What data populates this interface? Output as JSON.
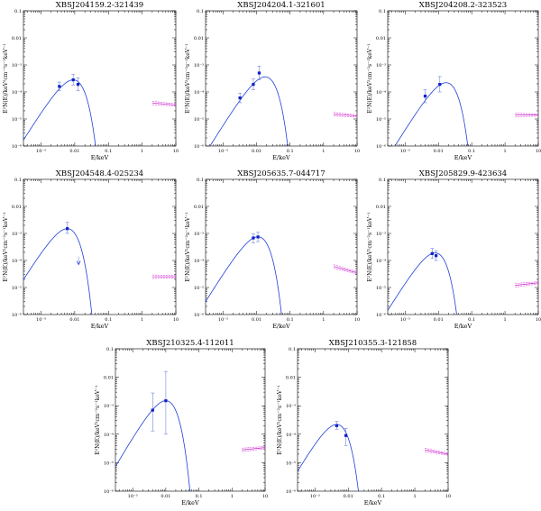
{
  "figure": {
    "x_axis_label": "E/keV",
    "y_axis_label": "E²N(E)/keV²cm⁻²s⁻¹keV⁻¹",
    "colors": {
      "model": "#1f3fd6",
      "uv_points": "#1020c8",
      "uv_errors": "#6f86d8",
      "xray": "#e040e0"
    }
  },
  "chart_data": [
    {
      "type": "line",
      "title": "XBSJ204159.2-321439",
      "xlabel": "E/keV",
      "ylabel": "E²N(E)/keV²cm⁻²s⁻¹keV⁻¹",
      "xscale": "log",
      "yscale": "log",
      "xlim": [
        0.0003,
        10
      ],
      "ylim": [
        1e-06,
        0.1
      ],
      "x_ticks": [
        "10⁻³",
        "0.01",
        "0.1",
        "1",
        "10"
      ],
      "y_ticks": [
        "10⁻⁶",
        "10⁻⁵",
        "10⁻⁴",
        "10⁻³",
        "0.01",
        "0.1"
      ],
      "model": {
        "peak_E": 0.009,
        "peak_flux": 0.00028
      },
      "uv_points": [
        {
          "E": 0.0035,
          "flux": 0.00016,
          "lo": 0.00011,
          "hi": 0.00023
        },
        {
          "E": 0.009,
          "flux": 0.00028,
          "lo": 0.00018,
          "hi": 0.00045
        },
        {
          "E": 0.0125,
          "flux": 0.00019,
          "lo": 0.00011,
          "hi": 0.00033
        }
      ],
      "xray": {
        "E": [
          2,
          10
        ],
        "flux": [
          3.9e-05,
          3.3e-05
        ]
      }
    },
    {
      "type": "line",
      "title": "XBSJ204204.1-321601",
      "xlabel": "E/keV",
      "ylabel": "E²N(E)/keV²cm⁻²s⁻¹keV⁻¹",
      "xscale": "log",
      "yscale": "log",
      "xlim": [
        0.0003,
        10
      ],
      "ylim": [
        1e-06,
        0.1
      ],
      "x_ticks": [
        "10⁻³",
        "0.01",
        "0.1",
        "1",
        "10"
      ],
      "y_ticks": [
        "10⁻⁶",
        "10⁻⁵",
        "10⁻⁴",
        "10⁻³",
        "0.01",
        "0.1"
      ],
      "model": {
        "peak_E": 0.018,
        "peak_flux": 0.00036
      },
      "uv_points": [
        {
          "E": 0.0032,
          "flux": 6e-05,
          "lo": 4e-05,
          "hi": 9e-05
        },
        {
          "E": 0.008,
          "flux": 0.00019,
          "lo": 0.00012,
          "hi": 0.0003
        },
        {
          "E": 0.012,
          "flux": 0.0005,
          "lo": 0.00028,
          "hi": 0.0009
        }
      ],
      "xray": {
        "E": [
          2,
          10
        ],
        "flux": [
          1.5e-05,
          1.3e-05
        ]
      }
    },
    {
      "type": "line",
      "title": "XBSJ204208.2-323523",
      "xlabel": "E/keV",
      "ylabel": "E²N(E)/keV²cm⁻²s⁻¹keV⁻¹",
      "xscale": "log",
      "yscale": "log",
      "xlim": [
        0.0003,
        10
      ],
      "ylim": [
        1e-06,
        0.1
      ],
      "x_ticks": [
        "10⁻³",
        "0.01",
        "0.1",
        "1",
        "10"
      ],
      "y_ticks": [
        "10⁻⁶",
        "10⁻⁵",
        "10⁻⁴",
        "10⁻³",
        "0.01",
        "0.1"
      ],
      "model": {
        "peak_E": 0.017,
        "peak_flux": 0.00022
      },
      "uv_points": [
        {
          "E": 0.004,
          "flux": 7e-05,
          "lo": 4e-05,
          "hi": 0.00012
        },
        {
          "E": 0.011,
          "flux": 0.00019,
          "lo": 0.0001,
          "hi": 0.00037
        }
      ],
      "xray": {
        "E": [
          2,
          10
        ],
        "flux": [
          1.4e-05,
          1.4e-05
        ]
      }
    },
    {
      "type": "line",
      "title": "XBSJ204548.4-025234",
      "xlabel": "E/keV",
      "ylabel": "E²N(E)/keV²cm⁻²s⁻¹keV⁻¹",
      "xscale": "log",
      "yscale": "log",
      "xlim": [
        0.0003,
        10
      ],
      "ylim": [
        1e-06,
        0.1
      ],
      "x_ticks": [
        "10⁻³",
        "0.01",
        "0.1",
        "1",
        "10"
      ],
      "y_ticks": [
        "10⁻⁶",
        "10⁻⁵",
        "10⁻⁴",
        "10⁻³",
        "0.01",
        "0.1"
      ],
      "model": {
        "peak_E": 0.006,
        "peak_flux": 0.0015
      },
      "uv_points": [
        {
          "E": 0.006,
          "flux": 0.0015,
          "lo": 0.001,
          "hi": 0.0026
        }
      ],
      "upper_limit": {
        "E": 0.013,
        "flux": 0.00014
      },
      "xray": {
        "E": [
          2,
          10
        ],
        "flux": [
          2.5e-05,
          2.5e-05
        ]
      }
    },
    {
      "type": "line",
      "title": "XBSJ205635.7-044717",
      "xlabel": "E/keV",
      "ylabel": "E²N(E)/keV²cm⁻²s⁻¹keV⁻¹",
      "xscale": "log",
      "yscale": "log",
      "xlim": [
        0.0003,
        10
      ],
      "ylim": [
        1e-06,
        0.1
      ],
      "x_ticks": [
        "10⁻³",
        "0.01",
        "0.1",
        "1",
        "10"
      ],
      "y_ticks": [
        "10⁻⁶",
        "10⁻⁵",
        "10⁻⁴",
        "10⁻³",
        "0.01",
        "0.1"
      ],
      "model": {
        "peak_E": 0.011,
        "peak_flux": 0.00075
      },
      "uv_points": [
        {
          "E": 0.008,
          "flux": 0.00068,
          "lo": 0.00045,
          "hi": 0.00095
        },
        {
          "E": 0.011,
          "flux": 0.00074,
          "lo": 0.0005,
          "hi": 0.0011
        }
      ],
      "xray": {
        "E": [
          2,
          10
        ],
        "flux": [
          6e-05,
          3.5e-05
        ]
      }
    },
    {
      "type": "line",
      "title": "XBSJ205829.9-423634",
      "xlabel": "E/keV",
      "ylabel": "E²N(E)/keV²cm⁻²s⁻¹keV⁻¹",
      "xscale": "log",
      "yscale": "log",
      "xlim": [
        0.0003,
        10
      ],
      "ylim": [
        1e-06,
        0.1
      ],
      "x_ticks": [
        "10⁻³",
        "0.01",
        "0.1",
        "1",
        "10"
      ],
      "y_ticks": [
        "10⁻⁶",
        "10⁻⁵",
        "10⁻⁴",
        "10⁻³",
        "0.01",
        "0.1"
      ],
      "model": {
        "peak_E": 0.008,
        "peak_flux": 0.00019
      },
      "uv_points": [
        {
          "E": 0.0065,
          "flux": 0.00018,
          "lo": 0.00012,
          "hi": 0.00028
        },
        {
          "E": 0.0085,
          "flux": 0.00015,
          "lo": 0.0001,
          "hi": 0.00023
        }
      ],
      "xray": {
        "E": [
          2,
          10
        ],
        "flux": [
          1.2e-05,
          1.5e-05
        ]
      }
    },
    {
      "type": "line",
      "title": "XBSJ210325.4-112011",
      "xlabel": "E/keV",
      "ylabel": "E²N(E)/keV²cm⁻²s⁻¹keV⁻¹",
      "xscale": "log",
      "yscale": "log",
      "xlim": [
        0.0003,
        10
      ],
      "ylim": [
        1e-06,
        0.1
      ],
      "x_ticks": [
        "10⁻³",
        "0.01",
        "0.1",
        "1",
        "10"
      ],
      "y_ticks": [
        "10⁻⁶",
        "10⁻⁵",
        "10⁻⁴",
        "10⁻³",
        "0.01",
        "0.1"
      ],
      "model": {
        "peak_E": 0.01,
        "peak_flux": 0.0015
      },
      "uv_points": [
        {
          "E": 0.004,
          "flux": 0.0007,
          "lo": 0.00013,
          "hi": 0.0028
        },
        {
          "E": 0.01,
          "flux": 0.0015,
          "lo": 0.0001,
          "hi": 0.016
        }
      ],
      "xray": {
        "E": [
          2,
          10
        ],
        "flux": [
          2.8e-05,
          3.4e-05
        ]
      }
    },
    {
      "type": "line",
      "title": "XBSJ210355.3-121858",
      "xlabel": "E/keV",
      "ylabel": "E²N(E)/keV²cm⁻²s⁻¹keV⁻¹",
      "xscale": "log",
      "yscale": "log",
      "xlim": [
        0.0003,
        10
      ],
      "ylim": [
        1e-06,
        0.1
      ],
      "x_ticks": [
        "10⁻³",
        "0.01",
        "0.1",
        "1",
        "10"
      ],
      "y_ticks": [
        "10⁻⁶",
        "10⁻⁵",
        "10⁻⁴",
        "10⁻³",
        "0.01",
        "0.1"
      ],
      "model": {
        "peak_E": 0.0045,
        "peak_flux": 0.00022
      },
      "uv_points": [
        {
          "E": 0.0045,
          "flux": 0.0002,
          "lo": 0.00015,
          "hi": 0.00028
        },
        {
          "E": 0.0085,
          "flux": 9e-05,
          "lo": 4e-05,
          "hi": 0.00016
        }
      ],
      "xray": {
        "E": [
          2,
          10
        ],
        "flux": [
          2.8e-05,
          2e-05
        ]
      }
    }
  ]
}
